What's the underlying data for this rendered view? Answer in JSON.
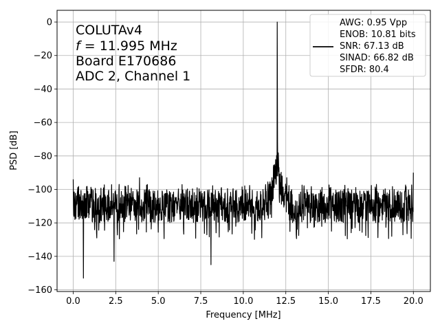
{
  "chart_data": {
    "type": "line",
    "xlabel": "Frequency [MHz]",
    "ylabel": "PSD [dB]",
    "xlim": [
      -0.95,
      21.0
    ],
    "ylim": [
      -161,
      7
    ],
    "xticks": [
      0.0,
      2.5,
      5.0,
      7.5,
      10.0,
      12.5,
      15.0,
      17.5,
      20.0
    ],
    "xtick_labels": [
      "0.0",
      "2.5",
      "5.0",
      "7.5",
      "10.0",
      "12.5",
      "15.0",
      "17.5",
      "20.0"
    ],
    "yticks": [
      0,
      -20,
      -40,
      -60,
      -80,
      -100,
      -120,
      -140,
      -160
    ],
    "ytick_labels": [
      "0",
      "−20",
      "−40",
      "−60",
      "−80",
      "−100",
      "−120",
      "−140",
      "−160"
    ],
    "grid": true,
    "annotation": {
      "line1": "COLUTAv4",
      "line2_italic": "f",
      "line2_rest": " = 11.995 MHz",
      "line3": "Board E170686",
      "line4": "ADC 2, Channel 1"
    },
    "legend": {
      "location": "upper right",
      "lines": [
        "AWG: 0.95 Vpp",
        "ENOB: 10.81 bits",
        "SNR: 67.13 dB",
        "SINAD: 66.82 dB",
        "SFDR: 80.4"
      ]
    },
    "series": [
      {
        "color": "#000000",
        "noise_floor_db": -110,
        "noise_band_db": [
          -122,
          -100
        ],
        "x_range": [
          0.0,
          20.0
        ],
        "signal_peak": {
          "x": 11.995,
          "y": 0
        },
        "skirt": {
          "x": 12.0,
          "y": -80
        },
        "spurs": [
          {
            "x": 0.0,
            "y": -94
          },
          {
            "x": 0.6,
            "y": -153
          },
          {
            "x": 2.4,
            "y": -143
          },
          {
            "x": 3.9,
            "y": -93
          },
          {
            "x": 8.1,
            "y": -145
          },
          {
            "x": 20.0,
            "y": -90
          }
        ]
      }
    ]
  }
}
